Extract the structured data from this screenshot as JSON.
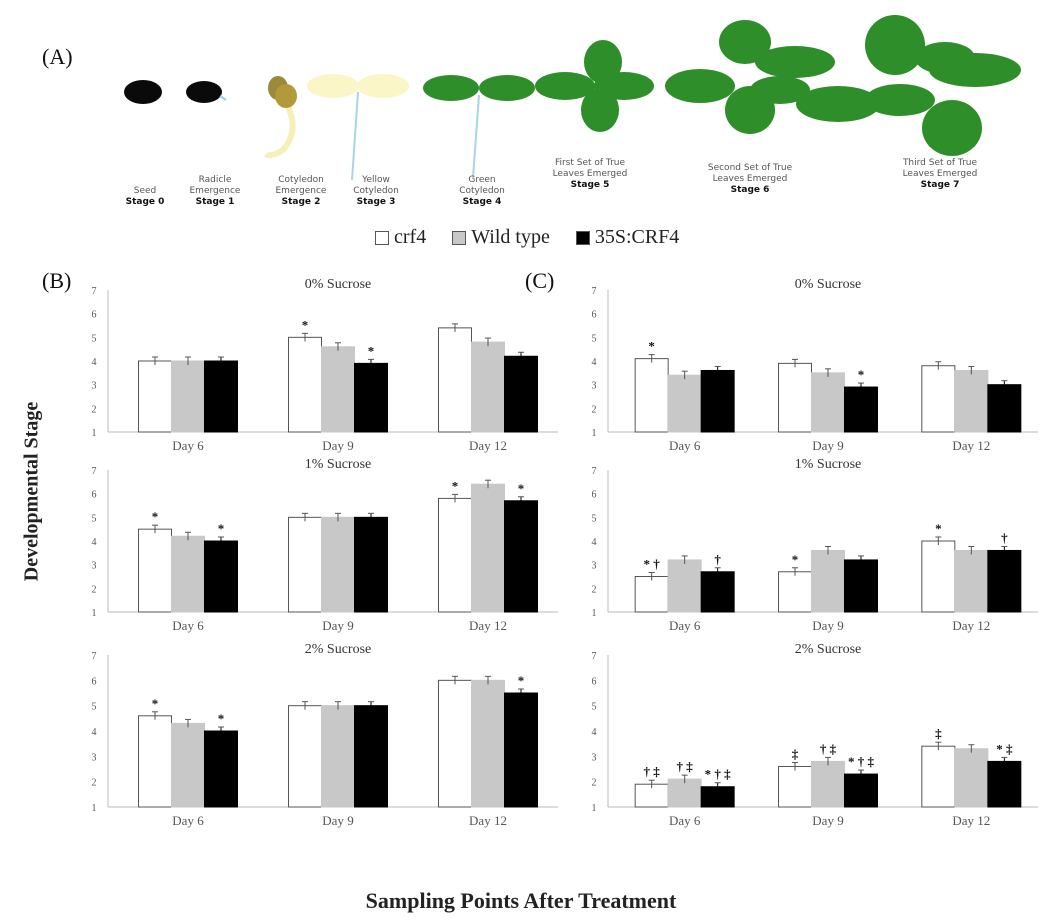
{
  "panel_labels": {
    "a": "(A)",
    "b": "(B)",
    "c": "(C)"
  },
  "stages": [
    {
      "name": "Seed",
      "stage": "Stage 0"
    },
    {
      "name": "Radicle Emergence",
      "stage": "Stage 1"
    },
    {
      "name": "Cotyledon Emergence",
      "stage": "Stage 2"
    },
    {
      "name": "Yellow Cotyledon",
      "stage": "Stage 3"
    },
    {
      "name": "Green Cotyledon",
      "stage": "Stage 4"
    },
    {
      "name": "First Set of True Leaves Emerged",
      "stage": "Stage 5"
    },
    {
      "name": "Second Set of True Leaves Emerged",
      "stage": "Stage 6"
    },
    {
      "name": "Third Set of True Leaves Emerged",
      "stage": "Stage 7"
    }
  ],
  "legend": [
    {
      "label": "crf4",
      "color": "#ffffff"
    },
    {
      "label": "Wild type",
      "color": "#c8c8c8"
    },
    {
      "label": "35S:CRF4",
      "color": "#000000"
    }
  ],
  "ylabel": "Developmental Stage",
  "xlabel": "Sampling Points After Treatment",
  "chart_data": [
    {
      "type": "bar",
      "panel": "B",
      "title": "0% Sucrose",
      "categories": [
        "Day 6",
        "Day 9",
        "Day 12"
      ],
      "ylim": [
        1,
        7
      ],
      "yticks": [
        1,
        2,
        3,
        4,
        5,
        6,
        7
      ],
      "series": [
        {
          "name": "crf4",
          "values": [
            4.0,
            5.0,
            5.4
          ],
          "marks": [
            "",
            "*",
            ""
          ]
        },
        {
          "name": "Wild type",
          "values": [
            4.0,
            4.6,
            4.8
          ],
          "marks": [
            "",
            "",
            ""
          ]
        },
        {
          "name": "35S:CRF4",
          "values": [
            4.0,
            3.9,
            4.2
          ],
          "marks": [
            "",
            "*",
            ""
          ]
        }
      ]
    },
    {
      "type": "bar",
      "panel": "B",
      "title": "1% Sucrose",
      "categories": [
        "Day 6",
        "Day 9",
        "Day 12"
      ],
      "ylim": [
        1,
        7
      ],
      "yticks": [
        1,
        2,
        3,
        4,
        5,
        6,
        7
      ],
      "series": [
        {
          "name": "crf4",
          "values": [
            4.5,
            5.0,
            5.8
          ],
          "marks": [
            "*",
            "",
            "*"
          ]
        },
        {
          "name": "Wild type",
          "values": [
            4.2,
            5.0,
            6.4
          ],
          "marks": [
            "",
            "",
            ""
          ]
        },
        {
          "name": "35S:CRF4",
          "values": [
            4.0,
            5.0,
            5.7
          ],
          "marks": [
            "*",
            "",
            "*"
          ]
        }
      ]
    },
    {
      "type": "bar",
      "panel": "B",
      "title": "2% Sucrose",
      "categories": [
        "Day 6",
        "Day 9",
        "Day 12"
      ],
      "ylim": [
        1,
        7
      ],
      "yticks": [
        1,
        2,
        3,
        4,
        5,
        6,
        7
      ],
      "series": [
        {
          "name": "crf4",
          "values": [
            4.6,
            5.0,
            6.0
          ],
          "marks": [
            "*",
            "",
            ""
          ]
        },
        {
          "name": "Wild type",
          "values": [
            4.3,
            5.0,
            6.0
          ],
          "marks": [
            "",
            "",
            ""
          ]
        },
        {
          "name": "35S:CRF4",
          "values": [
            4.0,
            5.0,
            5.5
          ],
          "marks": [
            "*",
            "",
            "*"
          ]
        }
      ]
    },
    {
      "type": "bar",
      "panel": "C",
      "title": "0% Sucrose",
      "categories": [
        "Day 6",
        "Day 9",
        "Day 12"
      ],
      "ylim": [
        1,
        7
      ],
      "yticks": [
        1,
        2,
        3,
        4,
        5,
        6,
        7
      ],
      "series": [
        {
          "name": "crf4",
          "values": [
            4.1,
            3.9,
            3.8
          ],
          "marks": [
            "*",
            "",
            ""
          ]
        },
        {
          "name": "Wild type",
          "values": [
            3.4,
            3.5,
            3.6
          ],
          "marks": [
            "",
            "",
            ""
          ]
        },
        {
          "name": "35S:CRF4",
          "values": [
            3.6,
            2.9,
            3.0
          ],
          "marks": [
            "",
            "*",
            ""
          ]
        }
      ]
    },
    {
      "type": "bar",
      "panel": "C",
      "title": "1% Sucrose",
      "categories": [
        "Day 6",
        "Day 9",
        "Day 12"
      ],
      "ylim": [
        1,
        7
      ],
      "yticks": [
        1,
        2,
        3,
        4,
        5,
        6,
        7
      ],
      "series": [
        {
          "name": "crf4",
          "values": [
            2.5,
            2.7,
            4.0
          ],
          "marks": [
            "* †",
            "*",
            "*"
          ]
        },
        {
          "name": "Wild type",
          "values": [
            3.2,
            3.6,
            3.6
          ],
          "marks": [
            "",
            "",
            ""
          ]
        },
        {
          "name": "35S:CRF4",
          "values": [
            2.7,
            3.2,
            3.6
          ],
          "marks": [
            "†",
            "",
            "†"
          ]
        }
      ]
    },
    {
      "type": "bar",
      "panel": "C",
      "title": "2% Sucrose",
      "categories": [
        "Day 6",
        "Day 9",
        "Day 12"
      ],
      "ylim": [
        1,
        7
      ],
      "yticks": [
        1,
        2,
        3,
        4,
        5,
        6,
        7
      ],
      "series": [
        {
          "name": "crf4",
          "values": [
            1.9,
            2.6,
            3.4
          ],
          "marks": [
            "† ‡",
            "‡",
            "‡"
          ]
        },
        {
          "name": "Wild type",
          "values": [
            2.1,
            2.8,
            3.3
          ],
          "marks": [
            "† ‡",
            "† ‡",
            ""
          ]
        },
        {
          "name": "35S:CRF4",
          "values": [
            1.8,
            2.3,
            2.8
          ],
          "marks": [
            "* † ‡",
            "* † ‡",
            "* ‡"
          ]
        }
      ]
    }
  ]
}
